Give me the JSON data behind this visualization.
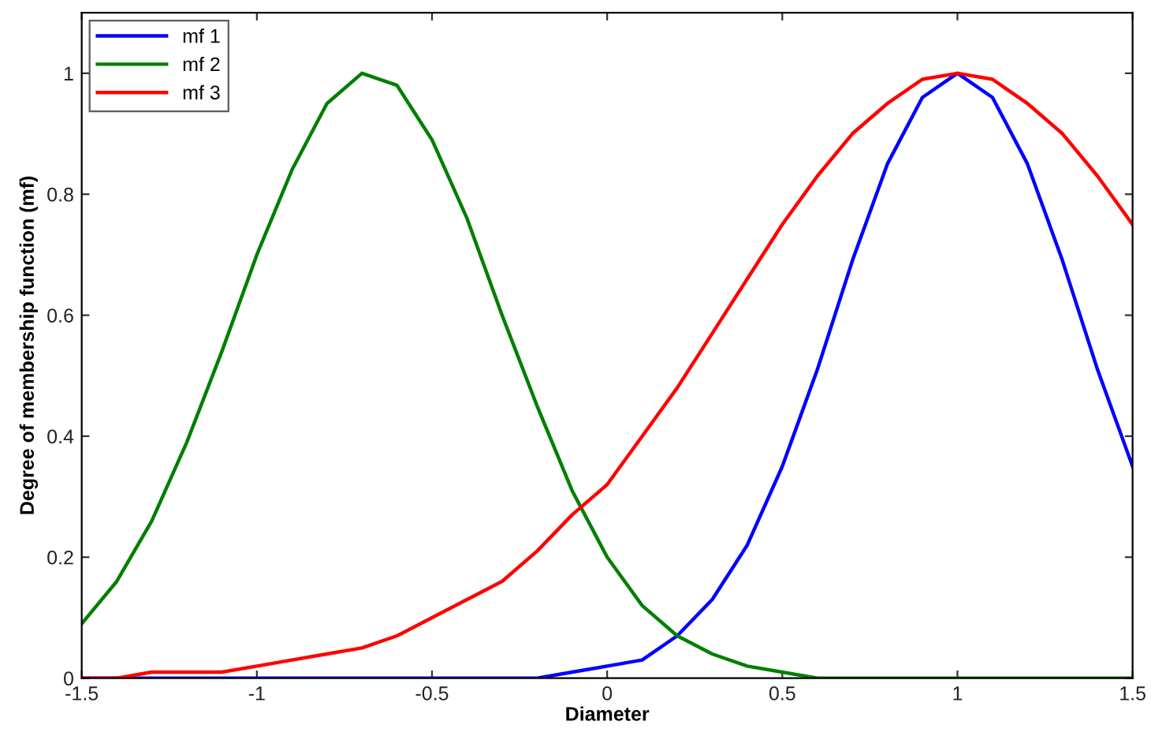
{
  "chart_data": {
    "type": "line",
    "xlabel": "Diameter",
    "ylabel": "Degree of membership function (mf)",
    "x": [
      -1.5,
      -1.4,
      -1.3,
      -1.2,
      -1.1,
      -1.0,
      -0.9,
      -0.8,
      -0.7,
      -0.6,
      -0.5,
      -0.4,
      -0.3,
      -0.2,
      -0.1,
      0,
      0.1,
      0.2,
      0.3,
      0.4,
      0.5,
      0.6,
      0.7,
      0.8,
      0.9,
      1.0,
      1.1,
      1.2,
      1.3,
      1.4,
      1.5
    ],
    "series": [
      {
        "name": "mf 1",
        "color": "#0000ff",
        "values": [
          0,
          0,
          0,
          0,
          0,
          0,
          0,
          0,
          0,
          0,
          0,
          0,
          0,
          0,
          0.01,
          0.02,
          0.03,
          0.07,
          0.13,
          0.22,
          0.35,
          0.51,
          0.69,
          0.85,
          0.96,
          1.0,
          0.96,
          0.85,
          0.69,
          0.51,
          0.35
        ]
      },
      {
        "name": "mf 2",
        "color": "#007f00",
        "values": [
          0.09,
          0.16,
          0.26,
          0.39,
          0.54,
          0.7,
          0.84,
          0.95,
          1.0,
          0.98,
          0.89,
          0.76,
          0.6,
          0.45,
          0.31,
          0.2,
          0.12,
          0.07,
          0.04,
          0.02,
          0.01,
          0,
          0,
          0,
          0,
          0,
          0,
          0,
          0,
          0,
          0
        ]
      },
      {
        "name": "mf 3",
        "color": "#ff0000",
        "values": [
          0,
          0,
          0.01,
          0.01,
          0.01,
          0.02,
          0.03,
          0.04,
          0.05,
          0.07,
          0.1,
          0.13,
          0.16,
          0.21,
          0.27,
          0.32,
          0.4,
          0.48,
          0.57,
          0.66,
          0.75,
          0.83,
          0.9,
          0.95,
          0.99,
          1.0,
          0.99,
          0.95,
          0.9,
          0.83,
          0.75
        ]
      }
    ],
    "xlim": [
      -1.5,
      1.5
    ],
    "xticks": [
      -1.5,
      -1,
      -0.5,
      0,
      0.5,
      1,
      1.5
    ],
    "ylim": [
      0,
      1.1
    ],
    "yticks": [
      0,
      0.2,
      0.4,
      0.6,
      0.8,
      1
    ],
    "grid": false,
    "legend": "top left",
    "marker": "none",
    "line_style": "solid"
  }
}
